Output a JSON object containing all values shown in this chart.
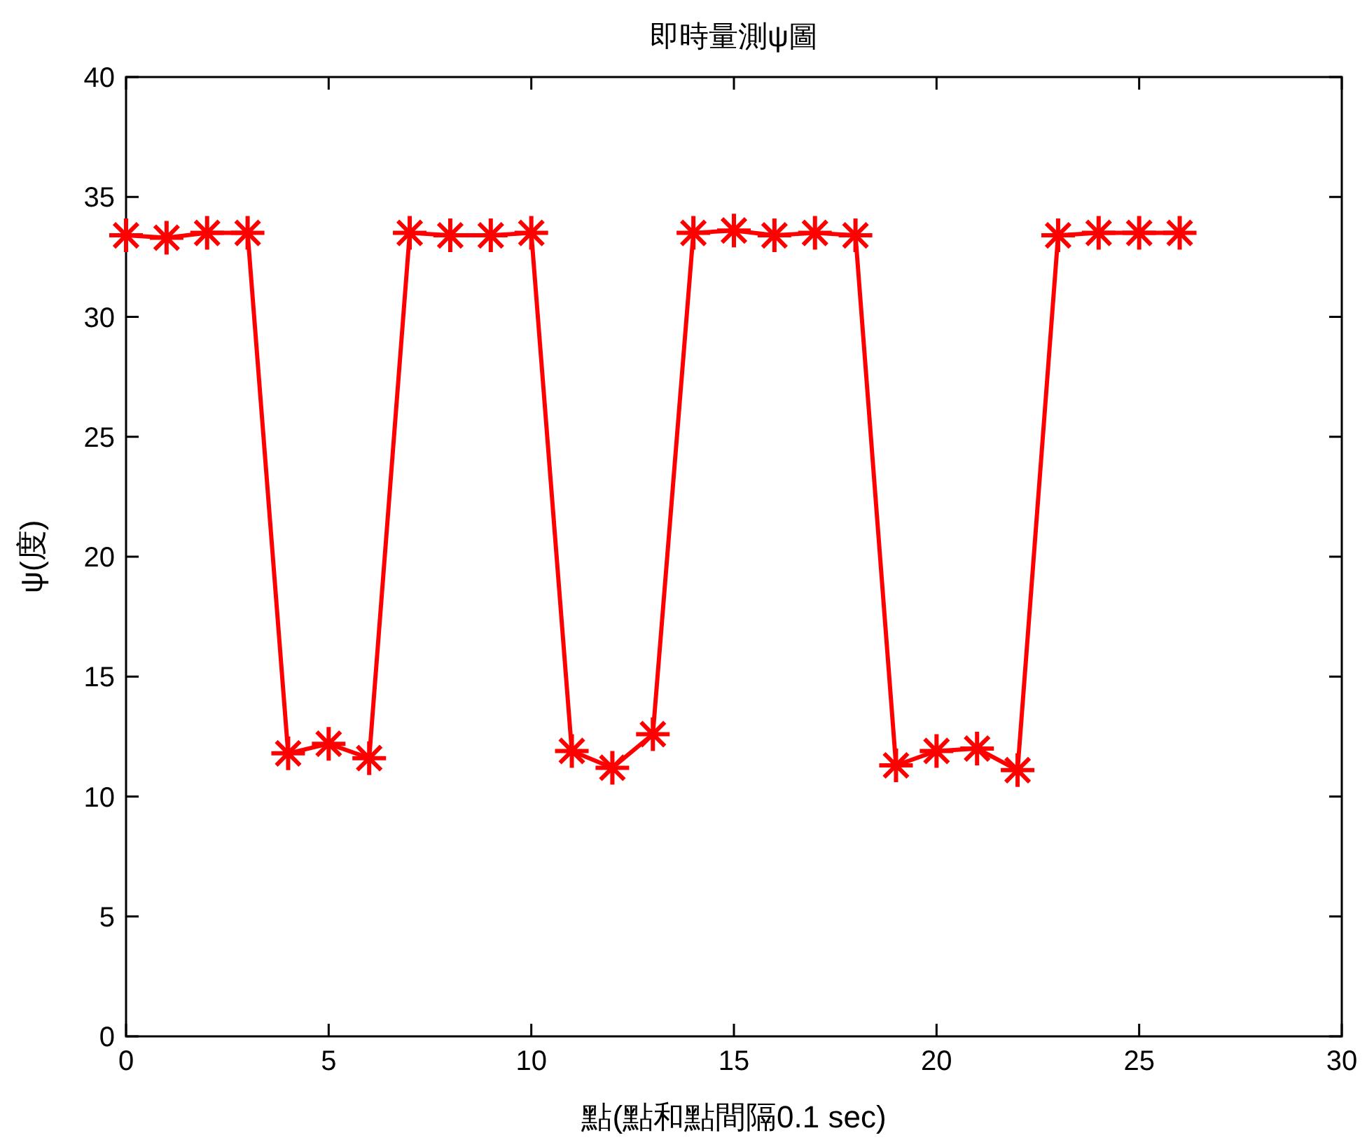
{
  "chart_data": {
    "type": "line",
    "title": "即時量測ψ圖",
    "xlabel": "點(點和點間隔0.1 sec)",
    "ylabel": "ψ(度)",
    "x": [
      0,
      1,
      2,
      3,
      4,
      5,
      6,
      7,
      8,
      9,
      10,
      11,
      12,
      13,
      14,
      15,
      16,
      17,
      18,
      19,
      20,
      21,
      22,
      23,
      24,
      25,
      26
    ],
    "series": [
      {
        "color": "#ff0000",
        "values": [
          33.4,
          33.3,
          33.5,
          33.5,
          11.8,
          12.2,
          11.6,
          33.5,
          33.4,
          33.4,
          33.5,
          11.9,
          11.2,
          12.6,
          33.5,
          33.6,
          33.4,
          33.5,
          33.4,
          11.3,
          11.9,
          12.0,
          11.1,
          33.4,
          33.5,
          33.5,
          33.5
        ]
      }
    ],
    "xlim": [
      0,
      30
    ],
    "ylim": [
      0,
      40
    ],
    "xticks": [
      0,
      5,
      10,
      15,
      20,
      25,
      30
    ],
    "yticks": [
      0,
      5,
      10,
      15,
      20,
      25,
      30,
      35,
      40
    ],
    "grid": false,
    "marker": "cross",
    "line_style": "solid"
  }
}
